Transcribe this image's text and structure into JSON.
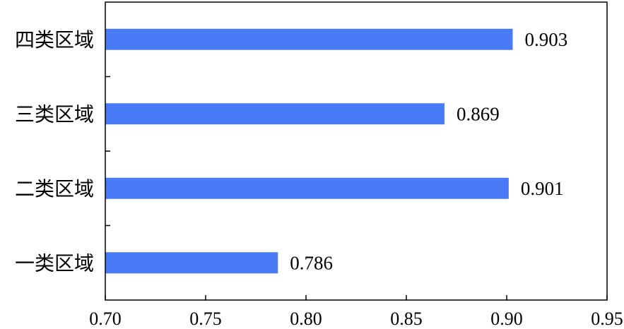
{
  "chart_data": {
    "type": "bar",
    "orientation": "horizontal",
    "categories": [
      "四类区域",
      "三类区域",
      "二类区域",
      "一类区域"
    ],
    "values": [
      0.903,
      0.869,
      0.901,
      0.786
    ],
    "data_labels": [
      "0.903",
      "0.869",
      "0.901",
      "0.786"
    ],
    "title": "",
    "xlabel": "",
    "ylabel": "",
    "xlim": [
      0.7,
      0.95
    ],
    "xticks": [
      0.7,
      0.75,
      0.8,
      0.85,
      0.9,
      0.95
    ],
    "xtick_labels": [
      "0.70",
      "0.75",
      "0.80",
      "0.85",
      "0.90",
      "0.95"
    ],
    "grid": false,
    "legend": "none",
    "bar_color": "#4A7BF7"
  }
}
